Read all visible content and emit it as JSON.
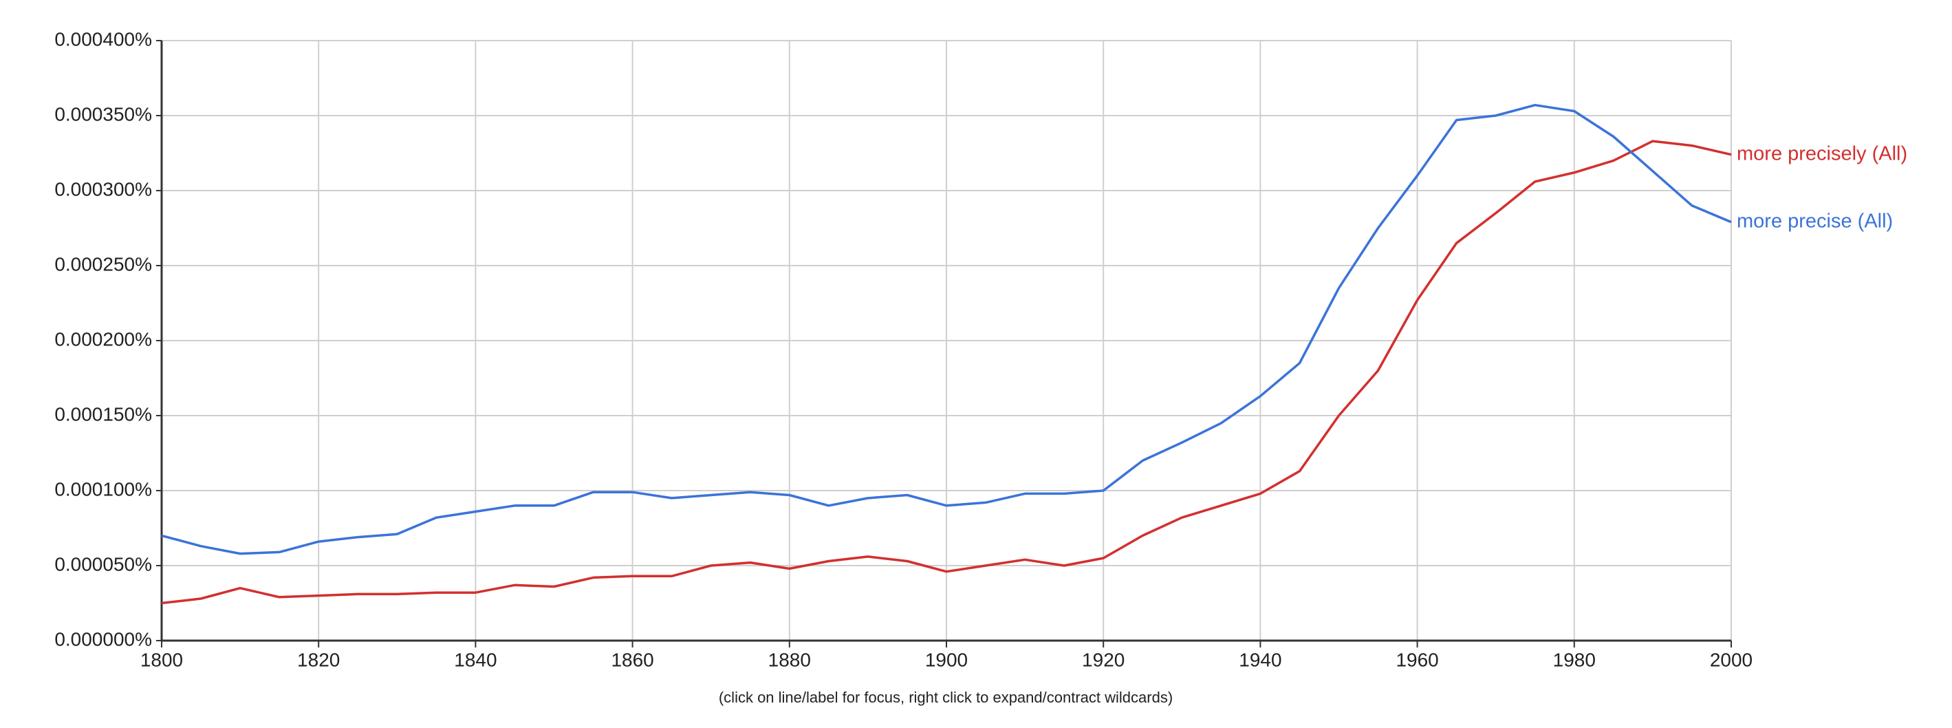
{
  "chart_data": {
    "type": "line",
    "x": [
      1800,
      1805,
      1810,
      1815,
      1820,
      1825,
      1830,
      1835,
      1840,
      1845,
      1850,
      1855,
      1860,
      1865,
      1870,
      1875,
      1880,
      1885,
      1890,
      1895,
      1900,
      1905,
      1910,
      1915,
      1920,
      1925,
      1930,
      1935,
      1940,
      1945,
      1950,
      1955,
      1960,
      1965,
      1970,
      1975,
      1980,
      1985,
      1990,
      1995,
      2000
    ],
    "series": [
      {
        "name": "more precisely (All)",
        "color": "#d32f2f",
        "values": [
          2.5e-05,
          2.8e-05,
          3.5e-05,
          2.9e-05,
          3e-05,
          3.1e-05,
          3.1e-05,
          3.2e-05,
          3.2e-05,
          3.7e-05,
          3.6e-05,
          4.2e-05,
          4.3e-05,
          4.3e-05,
          5e-05,
          5.2e-05,
          4.8e-05,
          5.3e-05,
          5.6e-05,
          5.3e-05,
          4.6e-05,
          5e-05,
          5.4e-05,
          5e-05,
          5.5e-05,
          7e-05,
          8.2e-05,
          9e-05,
          9.8e-05,
          0.000113,
          0.00015,
          0.00018,
          0.000227,
          0.000265,
          0.000285,
          0.000306,
          0.000312,
          0.00032,
          0.000333,
          0.00033,
          0.000324
        ]
      },
      {
        "name": "more precise (All)",
        "color": "#3b73d9",
        "values": [
          7e-05,
          6.3e-05,
          5.8e-05,
          5.9e-05,
          6.6e-05,
          6.9e-05,
          7.1e-05,
          8.2e-05,
          8.6e-05,
          9e-05,
          9e-05,
          9.9e-05,
          9.9e-05,
          9.5e-05,
          9.7e-05,
          9.9e-05,
          9.7e-05,
          9e-05,
          9.5e-05,
          9.7e-05,
          9e-05,
          9.2e-05,
          9.8e-05,
          9.8e-05,
          0.0001,
          0.00012,
          0.000132,
          0.000145,
          0.000163,
          0.000185,
          0.000235,
          0.000275,
          0.00031,
          0.000347,
          0.00035,
          0.000357,
          0.000353,
          0.000336,
          0.000313,
          0.00029,
          0.000279
        ]
      }
    ],
    "xlim": [
      1800,
      2000
    ],
    "xticks": [
      1800,
      1820,
      1840,
      1860,
      1880,
      1900,
      1920,
      1940,
      1960,
      1980,
      2000
    ],
    "ylim": [
      0,
      0.0004
    ],
    "yticks": [
      {
        "value": 0,
        "label": "0.000000%"
      },
      {
        "value": 5e-05,
        "label": "0.000050%"
      },
      {
        "value": 0.0001,
        "label": "0.000100%"
      },
      {
        "value": 0.00015,
        "label": "0.000150%"
      },
      {
        "value": 0.0002,
        "label": "0.000200%"
      },
      {
        "value": 0.00025,
        "label": "0.000250%"
      },
      {
        "value": 0.0003,
        "label": "0.000300%"
      },
      {
        "value": 0.00035,
        "label": "0.000350%"
      },
      {
        "value": 0.0004,
        "label": "0.000400%"
      }
    ],
    "grid": true,
    "footnote": "(click on line/label for focus, right click to expand/contract wildcards)"
  }
}
